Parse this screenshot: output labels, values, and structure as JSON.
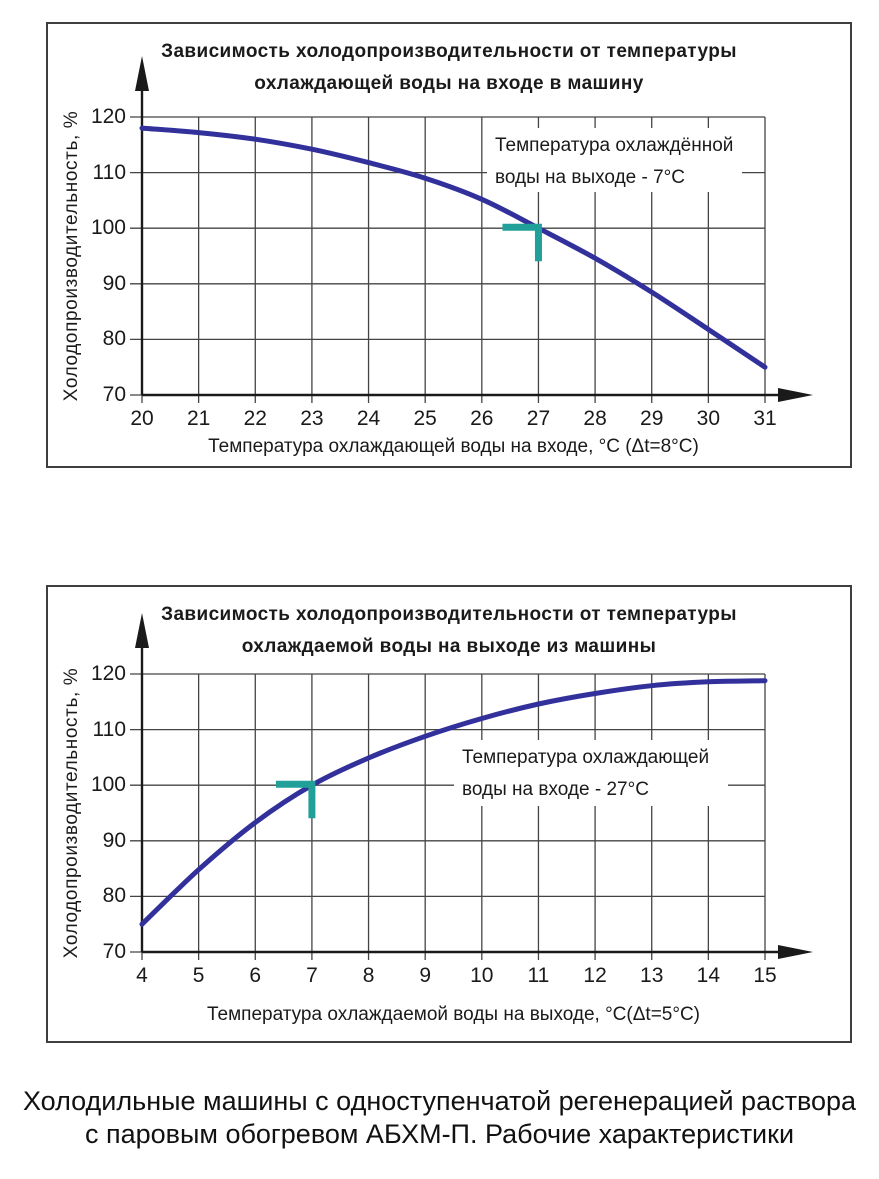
{
  "page": {
    "caption": {
      "line1": "Холодильные машины с одноступенчатой регенерацией раствора",
      "line2": "с паровым обогревом АБХМ-П. Рабочие характеристики"
    }
  },
  "colors": {
    "curve": "#32309b",
    "marker": "#21a099",
    "grid": "#444444",
    "axis": "#1a1a1a",
    "panel_border": "#3f3f3f",
    "text": "#1a1a1a"
  },
  "chart_data": [
    {
      "type": "line",
      "title_line1": "Зависимость холодопроизводительности от температуры",
      "title_line2": "охлаждающей воды на входе в машину",
      "xlabel": "Температура охлаждающей воды на входе, °С (Δt=8°С)",
      "ylabel": "Холодопроизводительность, %",
      "x": [
        20,
        21,
        22,
        23,
        24,
        25,
        26,
        27,
        28,
        29,
        30,
        31
      ],
      "y": [
        118,
        117.2,
        116,
        114.2,
        111.8,
        109,
        105.2,
        100,
        94.6,
        88.5,
        81.8,
        75
      ],
      "xlim": [
        20,
        31
      ],
      "ylim": [
        70,
        120
      ],
      "yticks": [
        120,
        110,
        100,
        90,
        80,
        70
      ],
      "grid": true,
      "legend": "none",
      "annotation": {
        "line1": "Температура охлаждённой",
        "line2": "воды на выходе - 7°С"
      },
      "marker_point": {
        "x": 27,
        "y": 100
      }
    },
    {
      "type": "line",
      "title_line1": "Зависимость холодопроизводительности от температуры",
      "title_line2": "охлаждаемой воды на выходе из машины",
      "xlabel": "Температура охлаждаемой воды на выходе, °С(Δt=5°С)",
      "ylabel": "Холодопроизводительность, %",
      "x": [
        4,
        5,
        6,
        7,
        8,
        9,
        10,
        11,
        12,
        13,
        14,
        15
      ],
      "y": [
        75,
        84.8,
        93.3,
        100,
        104.9,
        108.8,
        112,
        114.6,
        116.5,
        117.9,
        118.6,
        118.8
      ],
      "xlim": [
        4,
        15
      ],
      "ylim": [
        70,
        120
      ],
      "yticks": [
        120,
        110,
        100,
        90,
        80,
        70
      ],
      "grid": true,
      "legend": "none",
      "annotation": {
        "line1": "Температура охлаждающей",
        "line2": "воды на входе - 27°С"
      },
      "marker_point": {
        "x": 7,
        "y": 100
      }
    }
  ]
}
